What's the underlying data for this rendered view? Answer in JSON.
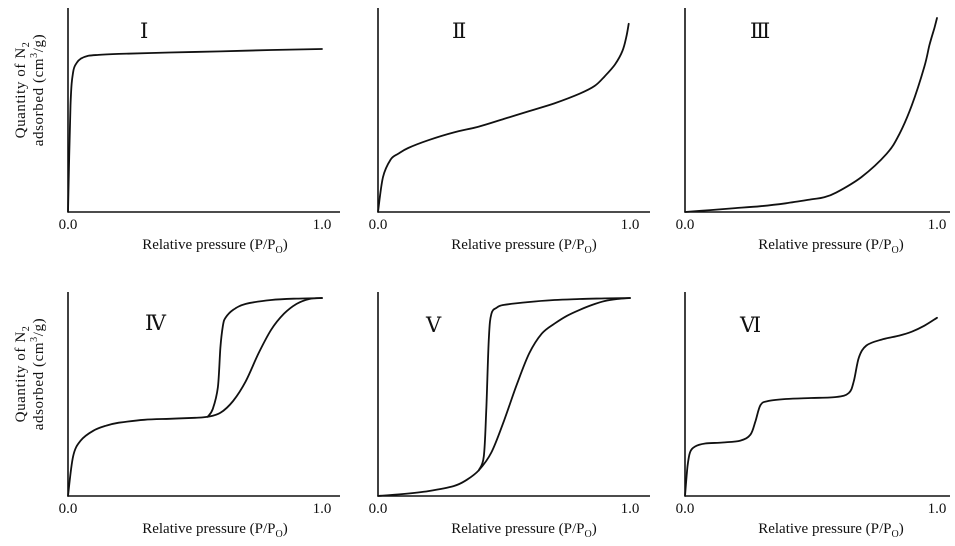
{
  "chart_data": [
    {
      "type": "line",
      "title": "Ⅰ",
      "xlabel": "Relative pressure (P/P",
      "xlabel_sub": "O",
      "xlabel_close": ")",
      "ylabel_line1": "Quantity  of  N",
      "ylabel_sub": "2",
      "ylabel_line2a": "adsorbed (cm",
      "ylabel_sup": "3",
      "ylabel_line2b": "/g)",
      "x_ticks": [
        "0.0",
        "1.0"
      ],
      "xlim": [
        0,
        1
      ],
      "ylim": [
        0,
        1
      ],
      "series": [
        {
          "x": [
            0,
            0.01,
            0.02,
            0.035,
            0.05,
            0.08,
            0.12,
            0.2,
            0.4,
            0.6,
            0.8,
            1.0
          ],
          "y": [
            0,
            0.55,
            0.72,
            0.77,
            0.79,
            0.805,
            0.81,
            0.815,
            0.822,
            0.828,
            0.835,
            0.84
          ]
        }
      ]
    },
    {
      "type": "line",
      "title": "Ⅱ",
      "xlabel": "Relative pressure (P/P",
      "xlabel_sub": "O",
      "xlabel_close": ")",
      "x_ticks": [
        "0.0",
        "1.0"
      ],
      "xlim": [
        0,
        1
      ],
      "ylim": [
        0,
        1
      ],
      "series": [
        {
          "x": [
            0,
            0.02,
            0.05,
            0.08,
            0.12,
            0.2,
            0.3,
            0.4,
            0.5,
            0.6,
            0.7,
            0.8,
            0.86,
            0.9,
            0.94,
            0.97,
            0.985,
            0.995
          ],
          "y": [
            0,
            0.18,
            0.27,
            0.3,
            0.33,
            0.37,
            0.41,
            0.44,
            0.48,
            0.52,
            0.56,
            0.61,
            0.65,
            0.7,
            0.76,
            0.83,
            0.9,
            0.97
          ]
        }
      ]
    },
    {
      "type": "line",
      "title": "Ⅲ",
      "xlabel": "Relative pressure (P/P",
      "xlabel_sub": "O",
      "xlabel_close": ")",
      "x_ticks": [
        "0.0",
        "1.0"
      ],
      "xlim": [
        0,
        1
      ],
      "ylim": [
        0,
        1
      ],
      "series": [
        {
          "x": [
            0,
            0.1,
            0.2,
            0.3,
            0.4,
            0.5,
            0.55,
            0.6,
            0.7,
            0.8,
            0.85,
            0.9,
            0.95,
            0.97,
            0.99,
            1.0
          ],
          "y": [
            0,
            0.01,
            0.02,
            0.03,
            0.045,
            0.065,
            0.075,
            0.1,
            0.18,
            0.3,
            0.4,
            0.55,
            0.75,
            0.86,
            0.95,
            1.0
          ]
        }
      ]
    },
    {
      "type": "line",
      "title": "Ⅳ",
      "xlabel": "Relative pressure (P/P",
      "xlabel_sub": "O",
      "xlabel_close": ")",
      "ylabel_line1": "Quantity  of  N",
      "ylabel_sub": "2",
      "ylabel_line2a": "adsorbed (cm",
      "ylabel_sup": "3",
      "ylabel_line2b": "/g)",
      "x_ticks": [
        "0.0",
        "1.0"
      ],
      "xlim": [
        0,
        1
      ],
      "ylim": [
        0,
        1
      ],
      "series": [
        {
          "x": [
            0,
            0.02,
            0.05,
            0.1,
            0.15,
            0.2,
            0.3,
            0.4,
            0.5,
            0.55,
            0.6,
            0.65,
            0.7,
            0.75,
            0.8,
            0.85,
            0.9,
            0.95,
            1.0
          ],
          "y": [
            0,
            0.2,
            0.28,
            0.33,
            0.355,
            0.37,
            0.385,
            0.39,
            0.395,
            0.4,
            0.42,
            0.48,
            0.58,
            0.72,
            0.84,
            0.92,
            0.97,
            0.995,
            1.0
          ]
        },
        {
          "x": [
            0.55,
            0.57,
            0.59,
            0.6,
            0.61,
            0.62,
            0.65,
            0.7,
            0.8,
            0.9,
            1.0
          ],
          "y": [
            0.4,
            0.44,
            0.55,
            0.75,
            0.86,
            0.9,
            0.94,
            0.97,
            0.99,
            0.997,
            1.0
          ]
        }
      ]
    },
    {
      "type": "line",
      "title": "Ⅴ",
      "xlabel": "Relative pressure (P/P",
      "xlabel_sub": "O",
      "xlabel_close": ")",
      "x_ticks": [
        "0.0",
        "1.0"
      ],
      "xlim": [
        0,
        1
      ],
      "ylim": [
        0,
        1
      ],
      "series": [
        {
          "x": [
            0,
            0.1,
            0.2,
            0.3,
            0.35,
            0.4,
            0.45,
            0.5,
            0.55,
            0.6,
            0.65,
            0.7,
            0.75,
            0.8,
            0.85,
            0.9,
            0.95,
            1.0
          ],
          "y": [
            0,
            0.01,
            0.025,
            0.05,
            0.08,
            0.13,
            0.22,
            0.38,
            0.56,
            0.72,
            0.82,
            0.87,
            0.91,
            0.94,
            0.965,
            0.985,
            0.995,
            1.0
          ]
        },
        {
          "x": [
            0.4,
            0.42,
            0.43,
            0.44,
            0.45,
            0.47,
            0.5,
            0.6,
            0.7,
            0.8,
            0.9,
            1.0
          ],
          "y": [
            0.13,
            0.2,
            0.45,
            0.8,
            0.92,
            0.95,
            0.965,
            0.98,
            0.99,
            0.995,
            0.998,
            1.0
          ]
        }
      ]
    },
    {
      "type": "line",
      "title": "Ⅵ",
      "xlabel": "Relative pressure (P/P",
      "xlabel_sub": "O",
      "xlabel_close": ")",
      "x_ticks": [
        "0.0",
        "1.0"
      ],
      "xlim": [
        0,
        1
      ],
      "ylim": [
        0,
        1
      ],
      "series": [
        {
          "x": [
            0,
            0.01,
            0.02,
            0.04,
            0.08,
            0.15,
            0.22,
            0.26,
            0.28,
            0.3,
            0.33,
            0.4,
            0.5,
            0.6,
            0.65,
            0.67,
            0.69,
            0.72,
            0.78,
            0.85,
            0.9,
            0.95,
            1.0
          ],
          "y": [
            0,
            0.15,
            0.22,
            0.25,
            0.265,
            0.27,
            0.28,
            0.31,
            0.38,
            0.46,
            0.48,
            0.49,
            0.495,
            0.5,
            0.52,
            0.58,
            0.7,
            0.76,
            0.79,
            0.81,
            0.83,
            0.86,
            0.9
          ]
        }
      ]
    }
  ]
}
